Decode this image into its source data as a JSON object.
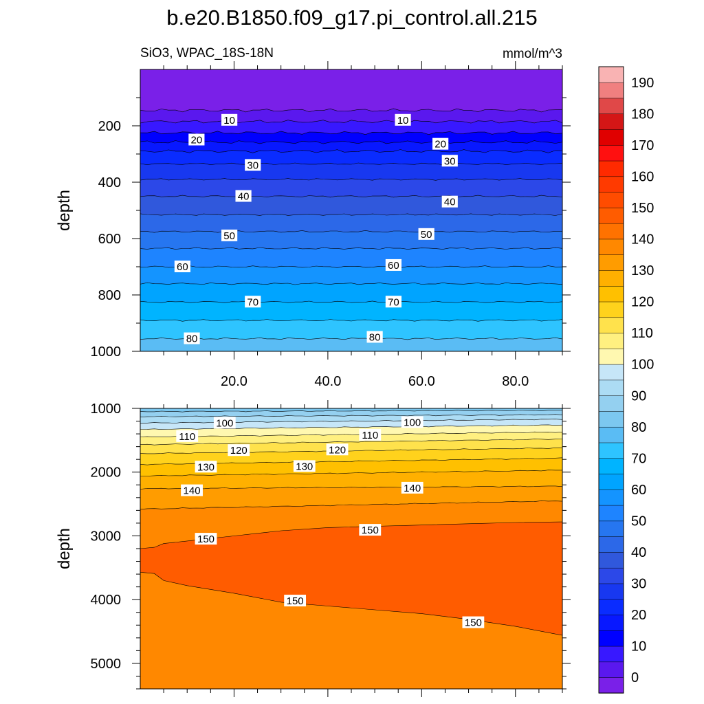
{
  "chart_data": {
    "type": "heatmap",
    "title": "b.e20.B1850.f09_g17.pi_control.all.215",
    "left_string": "SiO3, WPAC_18S-18N",
    "right_string": "mmol/m^3",
    "xlim": [
      0,
      90
    ],
    "x_ticks": [
      "20.0",
      "40.0",
      "60.0",
      "80.0"
    ],
    "upper_panel": {
      "ylabel": "depth",
      "ylim": [
        0,
        1000
      ],
      "y_ticks": [
        "200",
        "400",
        "600",
        "800",
        "1000"
      ],
      "contours": [
        {
          "depth": 145,
          "value": 5
        },
        {
          "depth": 185,
          "value": 10
        },
        {
          "depth": 225,
          "value": 15
        },
        {
          "depth": 258,
          "value": 20
        },
        {
          "depth": 290,
          "value": 25
        },
        {
          "depth": 335,
          "value": 30
        },
        {
          "depth": 390,
          "value": 35
        },
        {
          "depth": 450,
          "value": 40
        },
        {
          "depth": 515,
          "value": 45
        },
        {
          "depth": 575,
          "value": 50
        },
        {
          "depth": 635,
          "value": 55
        },
        {
          "depth": 700,
          "value": 60
        },
        {
          "depth": 760,
          "value": 65
        },
        {
          "depth": 825,
          "value": 70
        },
        {
          "depth": 890,
          "value": 75
        },
        {
          "depth": 955,
          "value": 80
        }
      ],
      "labels": [
        {
          "text": "10",
          "x": 19,
          "depth": 180
        },
        {
          "text": "10",
          "x": 56,
          "depth": 180
        },
        {
          "text": "20",
          "x": 12,
          "depth": 250
        },
        {
          "text": "20",
          "x": 64,
          "depth": 265
        },
        {
          "text": "30",
          "x": 24,
          "depth": 340
        },
        {
          "text": "30",
          "x": 66,
          "depth": 325
        },
        {
          "text": "40",
          "x": 22,
          "depth": 450
        },
        {
          "text": "40",
          "x": 66,
          "depth": 470
        },
        {
          "text": "50",
          "x": 19,
          "depth": 590
        },
        {
          "text": "50",
          "x": 61,
          "depth": 585
        },
        {
          "text": "60",
          "x": 9,
          "depth": 700
        },
        {
          "text": "60",
          "x": 54,
          "depth": 695
        },
        {
          "text": "70",
          "x": 24,
          "depth": 825
        },
        {
          "text": "70",
          "x": 54,
          "depth": 825
        },
        {
          "text": "80",
          "x": 11,
          "depth": 955
        },
        {
          "text": "80",
          "x": 50,
          "depth": 950
        }
      ]
    },
    "lower_panel": {
      "ylabel": "depth",
      "ylim": [
        1000,
        5400
      ],
      "y_ticks": [
        "1000",
        "2000",
        "3000",
        "4000",
        "5000"
      ],
      "contours": [
        {
          "left": 1050,
          "right": 1030,
          "value": 90
        },
        {
          "left": 1130,
          "right": 1100,
          "value": 95
        },
        {
          "left": 1230,
          "right": 1170,
          "value": 100
        },
        {
          "left": 1330,
          "right": 1260,
          "value": 105
        },
        {
          "left": 1450,
          "right": 1370,
          "value": 110
        },
        {
          "left": 1570,
          "right": 1480,
          "value": 115
        },
        {
          "left": 1710,
          "right": 1620,
          "value": 120
        },
        {
          "left": 1880,
          "right": 1780,
          "value": 125
        },
        {
          "left": 2060,
          "right": 1970,
          "value": 130
        },
        {
          "left": 2260,
          "right": 2220,
          "value": 135
        },
        {
          "left": 2580,
          "right": 2450,
          "value": 140
        }
      ],
      "core_150": {
        "top": [
          [
            0,
            3200
          ],
          [
            3,
            3180
          ],
          [
            5,
            3120
          ],
          [
            10,
            3080
          ],
          [
            20,
            3000
          ],
          [
            30,
            2920
          ],
          [
            40,
            2870
          ],
          [
            50,
            2850
          ],
          [
            60,
            2830
          ],
          [
            70,
            2810
          ],
          [
            80,
            2790
          ],
          [
            90,
            2780
          ]
        ],
        "bottom": [
          [
            0,
            3570
          ],
          [
            3,
            3590
          ],
          [
            5,
            3700
          ],
          [
            10,
            3780
          ],
          [
            20,
            3900
          ],
          [
            30,
            4040
          ],
          [
            40,
            4100
          ],
          [
            50,
            4160
          ],
          [
            60,
            4220
          ],
          [
            70,
            4310
          ],
          [
            80,
            4420
          ],
          [
            90,
            4560
          ]
        ]
      },
      "labels": [
        {
          "text": "100",
          "x": 18,
          "depth": 1230
        },
        {
          "text": "100",
          "x": 58,
          "depth": 1220
        },
        {
          "text": "110",
          "x": 10,
          "depth": 1440
        },
        {
          "text": "110",
          "x": 49,
          "depth": 1420
        },
        {
          "text": "120",
          "x": 21,
          "depth": 1660
        },
        {
          "text": "120",
          "x": 42,
          "depth": 1650
        },
        {
          "text": "130",
          "x": 14,
          "depth": 1920
        },
        {
          "text": "130",
          "x": 35,
          "depth": 1910
        },
        {
          "text": "140",
          "x": 11,
          "depth": 2290
        },
        {
          "text": "140",
          "x": 58,
          "depth": 2250
        },
        {
          "text": "150",
          "x": 14,
          "depth": 3050
        },
        {
          "text": "150",
          "x": 49,
          "depth": 2910
        },
        {
          "text": "150",
          "x": 33,
          "depth": 4020
        },
        {
          "text": "150",
          "x": 71,
          "depth": 4360
        }
      ]
    },
    "colorbar": {
      "labels": [
        "190",
        "180",
        "170",
        "160",
        "150",
        "140",
        "130",
        "120",
        "110",
        "100",
        "90",
        "80",
        "70",
        "60",
        "50",
        "40",
        "30",
        "20",
        "10",
        "0"
      ],
      "colors": [
        "#f9b3b3",
        "#f08080",
        "#e04848",
        "#d41616",
        "#e00000",
        "#ff1010",
        "#ff2a00",
        "#ff3a00",
        "#ff4c00",
        "#ff5c00",
        "#ff7200",
        "#ff8800",
        "#ff9c00",
        "#ffb000",
        "#ffc000",
        "#ffd21c",
        "#ffe24c",
        "#fff080",
        "#fff8b0",
        "#c6e6f8",
        "#acdcf4",
        "#94d0f0",
        "#7cc8f0",
        "#5abcf4",
        "#2ec4ff",
        "#00b4ff",
        "#00a4ff",
        "#1494ff",
        "#1e84ff",
        "#2676f0",
        "#2c68e8",
        "#3058dc",
        "#2c48e8",
        "#1838f0",
        "#0a2cff",
        "#0818ff",
        "#0000ff",
        "#3818ff",
        "#5a18ee",
        "#7a20e8"
      ]
    }
  }
}
